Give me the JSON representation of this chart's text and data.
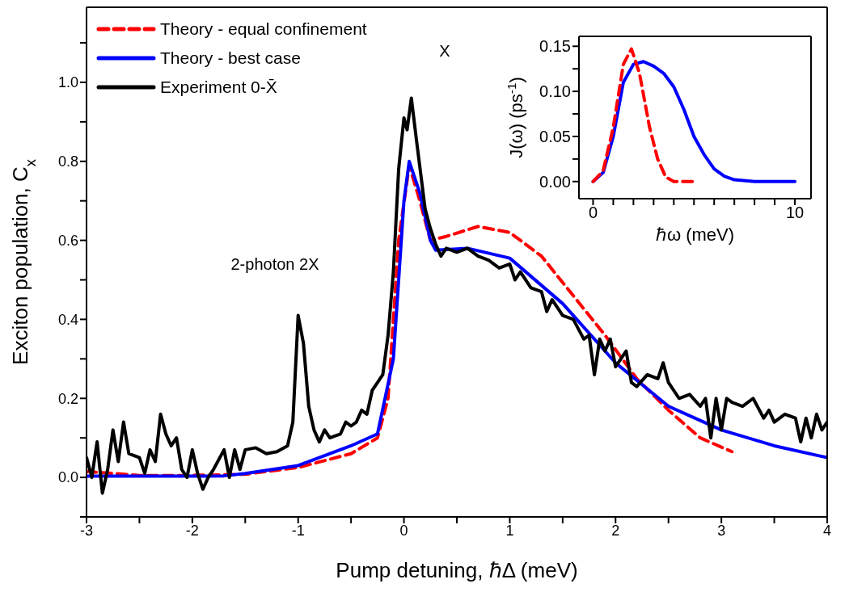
{
  "chart_data": [
    {
      "type": "line",
      "xlabel": "Pump detuning, ℏΔ (meV)",
      "ylabel": "Exciton population, C$_{x}$",
      "xlim": [
        -3,
        4
      ],
      "ylim": [
        -0.1,
        1.19
      ],
      "xticks": [
        -3,
        {
          "value": -2.5,
          "label": null
        },
        -2,
        {
          "value": -1.5,
          "label": null
        },
        -1,
        {
          "value": -0.5,
          "label": null
        },
        0,
        {
          "value": 0.5,
          "label": null
        },
        1,
        {
          "value": 1.5,
          "label": null
        },
        2,
        {
          "value": 2.5,
          "label": null
        },
        3,
        {
          "value": 3.5,
          "label": null
        },
        4
      ],
      "yticks": [
        {
          "value": -0.1,
          "label": null
        },
        {
          "value": 0,
          "label": "0.0"
        },
        {
          "value": 0.1,
          "label": null
        },
        {
          "value": 0.2,
          "label": "0.2"
        },
        {
          "value": 0.3,
          "label": null
        },
        {
          "value": 0.4,
          "label": "0.4"
        },
        {
          "value": 0.5,
          "label": null
        },
        {
          "value": 0.6,
          "label": "0.6"
        },
        {
          "value": 0.7,
          "label": null
        },
        {
          "value": 0.8,
          "label": "0.8"
        },
        {
          "value": 0.9,
          "label": null
        },
        {
          "value": 1.0,
          "label": "1.0"
        },
        {
          "value": 1.1,
          "label": null
        }
      ],
      "legend": "top left",
      "marker": "none",
      "annotations": [
        "2-photon 2X",
        "X"
      ],
      "series": [
        {
          "name": "Theory - equal confinement",
          "color": "#ff0000",
          "line_style": "dashed",
          "x": [
            -3,
            -2.5,
            -2,
            -1.5,
            -1,
            -0.5,
            -0.25,
            -0.15,
            -0.05,
            0.05,
            0.15,
            0.25,
            0.4,
            0.7,
            1.0,
            1.3,
            1.6,
            1.9,
            2.2,
            2.5,
            2.8,
            3.1
          ],
          "values": [
            0.015,
            0.005,
            0.005,
            0.008,
            0.025,
            0.06,
            0.1,
            0.2,
            0.6,
            0.79,
            0.7,
            0.6,
            0.61,
            0.635,
            0.62,
            0.56,
            0.46,
            0.36,
            0.25,
            0.17,
            0.1,
            0.065
          ]
        },
        {
          "name": "Theory - best case",
          "color": "#0000ff",
          "line_style": "solid",
          "x": [
            -3,
            -2.5,
            -2,
            -1.7,
            -1.5,
            -1,
            -0.5,
            -0.25,
            -0.1,
            0,
            0.05,
            0.15,
            0.25,
            0.3,
            0.6,
            1.0,
            1.5,
            2.0,
            2.5,
            3.0,
            3.5,
            4.0
          ],
          "values": [
            0.003,
            0.003,
            0.003,
            0.004,
            0.01,
            0.03,
            0.08,
            0.11,
            0.3,
            0.7,
            0.8,
            0.72,
            0.6,
            0.575,
            0.58,
            0.555,
            0.44,
            0.29,
            0.18,
            0.12,
            0.08,
            0.05
          ]
        },
        {
          "name": "Experiment 0-X̄",
          "color": "#000000",
          "line_style": "solid",
          "x": [
            -3,
            -2.95,
            -2.9,
            -2.85,
            -2.8,
            -2.75,
            -2.7,
            -2.65,
            -2.6,
            -2.5,
            -2.45,
            -2.4,
            -2.35,
            -2.3,
            -2.25,
            -2.2,
            -2.15,
            -2.1,
            -2.05,
            -2.0,
            -1.95,
            -1.9,
            -1.85,
            -1.8,
            -1.7,
            -1.65,
            -1.6,
            -1.55,
            -1.5,
            -1.4,
            -1.3,
            -1.2,
            -1.1,
            -1.05,
            -1.0,
            -0.95,
            -0.9,
            -0.85,
            -0.8,
            -0.75,
            -0.7,
            -0.6,
            -0.55,
            -0.5,
            -0.45,
            -0.4,
            -0.35,
            -0.3,
            -0.25,
            -0.2,
            -0.15,
            -0.1,
            -0.05,
            0.0,
            0.03,
            0.07,
            0.12,
            0.2,
            0.25,
            0.3,
            0.35,
            0.4,
            0.5,
            0.6,
            0.7,
            0.8,
            0.9,
            1.0,
            1.05,
            1.1,
            1.2,
            1.3,
            1.35,
            1.4,
            1.5,
            1.6,
            1.7,
            1.75,
            1.8,
            1.85,
            1.9,
            1.95,
            2.0,
            2.1,
            2.15,
            2.2,
            2.3,
            2.4,
            2.45,
            2.5,
            2.6,
            2.7,
            2.8,
            2.85,
            2.9,
            2.95,
            3.0,
            3.05,
            3.1,
            3.2,
            3.3,
            3.4,
            3.45,
            3.5,
            3.6,
            3.7,
            3.75,
            3.8,
            3.85,
            3.9,
            3.95,
            4.0
          ],
          "values": [
            0.05,
            0.0,
            0.09,
            -0.04,
            0.02,
            0.12,
            0.04,
            0.14,
            0.06,
            0.05,
            0.01,
            0.07,
            0.04,
            0.16,
            0.11,
            0.08,
            0.1,
            0.02,
            0.0,
            0.07,
            0.01,
            -0.03,
            0.0,
            0.02,
            0.07,
            0.0,
            0.07,
            0.02,
            0.07,
            0.075,
            0.06,
            0.065,
            0.08,
            0.14,
            0.41,
            0.34,
            0.18,
            0.12,
            0.09,
            0.12,
            0.1,
            0.11,
            0.14,
            0.13,
            0.14,
            0.17,
            0.16,
            0.22,
            0.24,
            0.26,
            0.36,
            0.52,
            0.78,
            0.91,
            0.88,
            0.96,
            0.85,
            0.68,
            0.63,
            0.59,
            0.56,
            0.58,
            0.57,
            0.58,
            0.56,
            0.55,
            0.53,
            0.54,
            0.5,
            0.52,
            0.48,
            0.47,
            0.42,
            0.45,
            0.41,
            0.4,
            0.35,
            0.36,
            0.26,
            0.35,
            0.32,
            0.35,
            0.28,
            0.32,
            0.24,
            0.23,
            0.26,
            0.25,
            0.29,
            0.24,
            0.2,
            0.21,
            0.18,
            0.2,
            0.1,
            0.2,
            0.12,
            0.2,
            0.19,
            0.18,
            0.2,
            0.15,
            0.17,
            0.14,
            0.16,
            0.15,
            0.09,
            0.15,
            0.1,
            0.16,
            0.12,
            0.14
          ]
        }
      ]
    },
    {
      "type": "line",
      "xlabel": "ℏω (meV)",
      "ylabel": "J(ω) (ps$^{-1}$)",
      "xlim": [
        -0.7,
        10.8
      ],
      "ylim": [
        -0.019,
        0.161
      ],
      "xticks": [
        0,
        {
          "value": 1,
          "label": null
        },
        {
          "value": 2,
          "label": null
        },
        {
          "value": 3,
          "label": null
        },
        {
          "value": 4,
          "label": null
        },
        {
          "value": 5,
          "label": null
        },
        {
          "value": 6,
          "label": null
        },
        {
          "value": 7,
          "label": null
        },
        {
          "value": 8,
          "label": null
        },
        {
          "value": 9,
          "label": null
        },
        10
      ],
      "yticks": [
        {
          "value": 0,
          "label": "0.00"
        },
        {
          "value": 0.025,
          "label": null
        },
        {
          "value": 0.05,
          "label": "0.05"
        },
        {
          "value": 0.075,
          "label": null
        },
        {
          "value": 0.1,
          "label": "0.10"
        },
        {
          "value": 0.125,
          "label": null
        },
        {
          "value": 0.15,
          "label": "0.15"
        }
      ],
      "marker": "none",
      "series": [
        {
          "color": "#0000ff",
          "line_style": "solid",
          "x": [
            0,
            0.5,
            1,
            1.5,
            2,
            2.5,
            3,
            3.5,
            4,
            4.5,
            5,
            5.5,
            6,
            6.5,
            7,
            8,
            10
          ],
          "values": [
            0,
            0.01,
            0.05,
            0.11,
            0.13,
            0.133,
            0.128,
            0.12,
            0.105,
            0.08,
            0.05,
            0.03,
            0.014,
            0.006,
            0.002,
            0,
            0
          ]
        },
        {
          "color": "#ff0000",
          "line_style": "dashed",
          "x": [
            0,
            0.5,
            1,
            1.5,
            1.9,
            2.3,
            2.8,
            3.2,
            3.6,
            4,
            5
          ],
          "values": [
            0,
            0.012,
            0.06,
            0.13,
            0.147,
            0.12,
            0.06,
            0.025,
            0.005,
            0,
            0
          ]
        }
      ]
    }
  ]
}
